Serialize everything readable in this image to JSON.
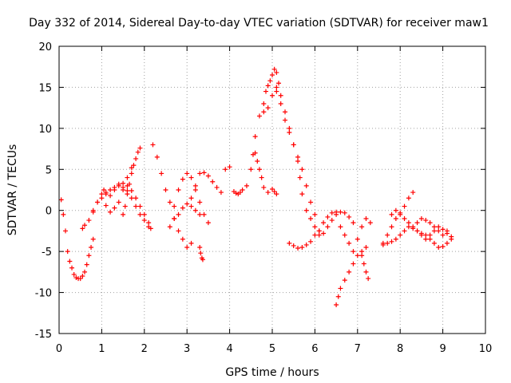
{
  "chart_data": {
    "type": "scatter",
    "title": "Day 332 of 2014, Sidereal Day-to-day VTEC variation (SDTVAR) for receiver maw1",
    "xlabel": "GPS time / hours",
    "ylabel": "SDTVAR / TECUs",
    "xlim": [
      0,
      10
    ],
    "ylim": [
      -15,
      20
    ],
    "xticks": [
      0,
      1,
      2,
      3,
      4,
      5,
      6,
      7,
      8,
      9,
      10
    ],
    "yticks": [
      -15,
      -10,
      -5,
      0,
      5,
      10,
      15,
      20
    ],
    "grid": true,
    "marker": "+",
    "color": "#ff0000",
    "series": [
      {
        "name": "seg1",
        "x": [
          0.05,
          0.1,
          0.15,
          0.2,
          0.25,
          0.3,
          0.35,
          0.4,
          0.45,
          0.5,
          0.55,
          0.6,
          0.65,
          0.7,
          0.75,
          0.8
        ],
        "y": [
          1.3,
          -0.5,
          -2.5,
          -5,
          -6.2,
          -7,
          -7.8,
          -8.2,
          -8.3,
          -8.3,
          -8,
          -7.5,
          -6.6,
          -5.5,
          -4.5,
          -3.5
        ]
      },
      {
        "name": "seg2",
        "x": [
          0.55,
          0.6,
          0.7,
          0.8,
          0.9,
          1,
          1.05,
          1.1,
          1.2,
          1.3,
          1.4,
          1.5,
          1.6,
          1.7,
          1.8,
          1.9,
          2,
          2.1
        ],
        "y": [
          -2.2,
          -1.8,
          -1.2,
          -0.2,
          1,
          2,
          2.5,
          2.2,
          1.8,
          2.5,
          3,
          2.8,
          2.4,
          1.5,
          0.5,
          -0.5,
          -1.2,
          -2
        ]
      },
      {
        "name": "seg3",
        "x": [
          0.8,
          0.9,
          1,
          1.1,
          1.2,
          1.3,
          1.4,
          1.5,
          1.6,
          1.7
        ],
        "y": [
          0,
          1,
          1.5,
          0.6,
          -0.2,
          0.3,
          1,
          2.5,
          4,
          5.2
        ]
      },
      {
        "name": "seg4",
        "x": [
          1.1,
          1.2,
          1.3,
          1.4,
          1.5,
          1.6,
          1.7,
          1.8,
          1.9,
          2,
          2.1,
          2.15
        ],
        "y": [
          2,
          2.5,
          2.8,
          3.2,
          3.3,
          3,
          2.4,
          1.5,
          0.5,
          -0.5,
          -1.5,
          -2.2
        ]
      },
      {
        "name": "seg5",
        "x": [
          1.5,
          1.55,
          1.6,
          1.65,
          1.7,
          1.75,
          1.8,
          1.85,
          1.9
        ],
        "y": [
          -0.5,
          0.5,
          2,
          3.2,
          4.5,
          5.5,
          6.3,
          7.1,
          7.6
        ]
      },
      {
        "name": "seg6",
        "x": [
          2.2,
          2.3,
          2.4,
          2.5,
          2.6,
          2.7,
          2.8,
          2.9,
          3,
          3.1
        ],
        "y": [
          8,
          6.5,
          4.5,
          2.5,
          1,
          -1,
          -2.5,
          -3.5,
          -4.5,
          -4
        ]
      },
      {
        "name": "seg7",
        "x": [
          2.6,
          2.7,
          2.8,
          2.9,
          3,
          3.1,
          3.2,
          3.3,
          3.4,
          3.5
        ],
        "y": [
          -2,
          0.5,
          2.5,
          3.8,
          4.5,
          4,
          2.5,
          1,
          -0.5,
          -1.5
        ]
      },
      {
        "name": "seg8",
        "x": [
          2.7,
          2.8,
          2.9,
          3,
          3.1,
          3.2,
          3.3
        ],
        "y": [
          -1,
          -0.5,
          0.3,
          0.8,
          0.5,
          0,
          -0.5
        ]
      },
      {
        "name": "seg9",
        "x": [
          3.1,
          3.2,
          3.3,
          3.4,
          3.5,
          3.6,
          3.7,
          3.8,
          3.9,
          4
        ],
        "y": [
          1.5,
          3,
          4.5,
          4.6,
          4.2,
          3.5,
          2.8,
          2.2,
          5,
          5.3
        ]
      },
      {
        "name": "seg10",
        "x": [
          3.3,
          3.32,
          3.35,
          3.37
        ],
        "y": [
          -4.5,
          -5.2,
          -5.8,
          -6
        ]
      },
      {
        "name": "seg11",
        "x": [
          4.1,
          4.15,
          4.2,
          4.25,
          4.3
        ],
        "y": [
          2.3,
          2.1,
          2,
          2.2,
          2.5
        ]
      },
      {
        "name": "seg12",
        "x": [
          4.4,
          4.5,
          4.55,
          4.6,
          4.65,
          4.7,
          4.75,
          4.8,
          4.9,
          5,
          5.05,
          5.1
        ],
        "y": [
          3,
          5,
          6.8,
          7,
          6,
          5,
          4,
          2.8,
          2.2,
          2.6,
          2.3,
          2
        ]
      },
      {
        "name": "seg13",
        "x": [
          4.6,
          4.7,
          4.8,
          4.85,
          4.9,
          4.95,
          5,
          5.05,
          5.1,
          5.15
        ],
        "y": [
          9,
          11.5,
          13,
          14.5,
          15.2,
          15.8,
          16.5,
          17.2,
          16.8,
          15.5
        ]
      },
      {
        "name": "seg14",
        "x": [
          4.8,
          4.9,
          5,
          5.1,
          5.2,
          5.3,
          5.4,
          5.5,
          5.6,
          5.65,
          5.7,
          5.8,
          5.9,
          6,
          6.1
        ],
        "y": [
          12,
          12.5,
          14,
          15,
          14,
          12,
          10,
          8,
          6,
          4,
          2,
          0,
          -1,
          -2,
          -3
        ]
      },
      {
        "name": "seg15",
        "x": [
          5.1,
          5.2,
          5.3,
          5.4,
          5.5,
          5.6,
          5.7,
          5.8,
          5.9,
          6
        ],
        "y": [
          14.5,
          13,
          11,
          9.5,
          8,
          6.5,
          5,
          3,
          1,
          -0.5
        ]
      },
      {
        "name": "seg16",
        "x": [
          5.4,
          5.5,
          5.6,
          5.7,
          5.8,
          5.9,
          6,
          6.1,
          6.2,
          6.3,
          6.4,
          6.5
        ],
        "y": [
          -4,
          -4.3,
          -4.6,
          -4.5,
          -4.2,
          -3.8,
          -3,
          -2.5,
          -1.5,
          -0.8,
          -0.3,
          -0.2
        ]
      },
      {
        "name": "seg17",
        "x": [
          6.1,
          6.2,
          6.3,
          6.4,
          6.5,
          6.6,
          6.7,
          6.8,
          6.9
        ],
        "y": [
          -2.5,
          -2.8,
          -2,
          -1.2,
          -0.5,
          -0.2,
          -0.3,
          -0.8,
          -1.5
        ]
      },
      {
        "name": "seg18",
        "x": [
          6.5,
          6.55,
          6.6,
          6.7,
          6.8,
          6.9,
          7,
          7.1,
          7.2
        ],
        "y": [
          -11.5,
          -10.5,
          -9.5,
          -8.5,
          -7.5,
          -6.5,
          -5.5,
          -5,
          -4.5
        ]
      },
      {
        "name": "seg19",
        "x": [
          6.6,
          6.7,
          6.8,
          6.9,
          7,
          7.1,
          7.2,
          7.3
        ],
        "y": [
          -2,
          -3,
          -4,
          -5,
          -3.5,
          -2,
          -1,
          -1.5
        ]
      },
      {
        "name": "seg20",
        "x": [
          7.1,
          7.15,
          7.2,
          7.25
        ],
        "y": [
          -5.5,
          -6.5,
          -7.5,
          -8.3
        ]
      },
      {
        "name": "seg21",
        "x": [
          7.6,
          7.7,
          7.8,
          7.9,
          8,
          8.1,
          8.2,
          8.3
        ],
        "y": [
          -4,
          -3,
          -2,
          -1,
          -0.3,
          0.5,
          1.5,
          2.2
        ]
      },
      {
        "name": "seg22",
        "x": [
          7.6,
          7.7,
          7.8,
          7.9,
          8,
          8.1,
          8.2,
          8.3,
          8.4,
          8.5,
          8.6,
          8.7,
          8.8,
          8.9,
          9,
          9.1,
          9.2
        ],
        "y": [
          -4.2,
          -4,
          -3.8,
          -3.5,
          -3,
          -2.5,
          -2,
          -2.2,
          -2.5,
          -2.8,
          -3,
          -3.5,
          -4,
          -4.5,
          -4.4,
          -4,
          -3.5
        ]
      },
      {
        "name": "seg23",
        "x": [
          7.8,
          7.9,
          8,
          8.1,
          8.2,
          8.3,
          8.4,
          8.5,
          8.6,
          8.7,
          8.8,
          8.9,
          9,
          9.1
        ],
        "y": [
          -0.5,
          0,
          -0.5,
          -1,
          -1.5,
          -2,
          -1.5,
          -1,
          -1.2,
          -1.5,
          -2,
          -2.5,
          -3,
          -2.5
        ]
      },
      {
        "name": "seg24",
        "x": [
          8.4,
          8.5,
          8.6,
          8.7,
          8.8,
          8.9,
          9,
          9.1,
          9.2
        ],
        "y": [
          -2.5,
          -3,
          -3.5,
          -3,
          -2.5,
          -2,
          -2.3,
          -2.8,
          -3.2
        ]
      }
    ]
  }
}
